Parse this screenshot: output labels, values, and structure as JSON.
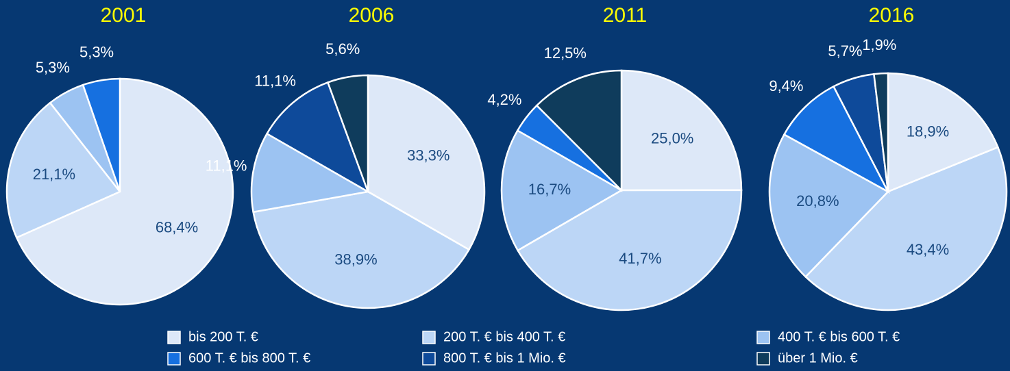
{
  "chart_data": [
    {
      "type": "pie",
      "title": "2001",
      "values": [
        68.4,
        21.1,
        5.3,
        5.3,
        null,
        null
      ],
      "value_labels": [
        "68,4%",
        "21,1%",
        "5,3%",
        "5,3%",
        null,
        null
      ]
    },
    {
      "type": "pie",
      "title": "2006",
      "values": [
        33.3,
        38.9,
        11.1,
        null,
        11.1,
        5.6
      ],
      "value_labels": [
        "33,3%",
        "38,9%",
        "11,1%",
        null,
        "11,1%",
        "5,6%"
      ]
    },
    {
      "type": "pie",
      "title": "2011",
      "values": [
        25.0,
        41.7,
        16.7,
        4.2,
        null,
        12.5
      ],
      "value_labels": [
        "25,0%",
        "41,7%",
        "16,7%",
        "4,2%",
        null,
        "12,5%"
      ]
    },
    {
      "type": "pie",
      "title": "2016",
      "values": [
        18.9,
        43.4,
        20.8,
        9.4,
        5.7,
        1.9
      ],
      "value_labels": [
        "18,9%",
        "43,4%",
        "20,8%",
        "9,4%",
        "5,7%",
        "1,9%"
      ]
    }
  ],
  "legend": {
    "categories": [
      "bis 200 T. €",
      "200 T. € bis 400 T. €",
      "400 T. € bis 600 T. €",
      "600 T. € bis 800 T. €",
      "800 T. € bis 1 Mio. €",
      "über 1 Mio. €"
    ],
    "colors": [
      "#dde8f8",
      "#bcd6f6",
      "#9cc3f2",
      "#1670e0",
      "#0e4a9a",
      "#0f3c5c"
    ]
  }
}
